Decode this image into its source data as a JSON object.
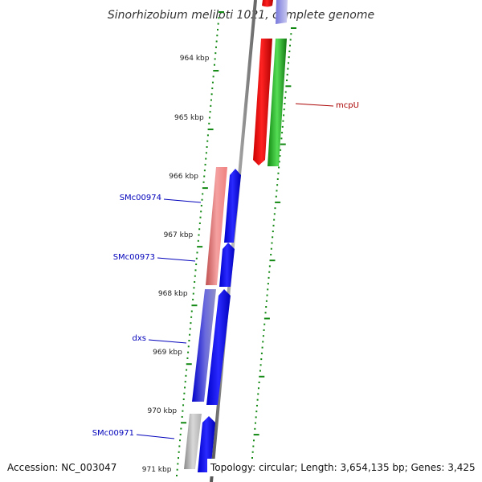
{
  "header": {
    "title": "Sinorhizobium meliloti 1021, complete genome"
  },
  "footer": {
    "accession": "Accession: NC_003047",
    "summary": "Topology: circular; Length: 3,654,135 bp; Genes: 3,425"
  },
  "ticks": [
    "964 kbp",
    "965 kbp",
    "966 kbp",
    "967 kbp",
    "968 kbp",
    "969 kbp",
    "970 kbp",
    "971 kbp"
  ],
  "genes": {
    "mcpU": "mcpU",
    "SMc00974": "SMc00974",
    "SMc00973": "SMc00973",
    "dxs": "dxs",
    "SMc00971": "SMc00971"
  },
  "colors": {
    "forward_cds": "#0000ff",
    "forward_cds_light": "#f08080",
    "reverse_red": "#ff0000",
    "reverse_green": "#22aa22",
    "gray_gene": "#a0a0a0",
    "backbone": "#808080",
    "tick_mark": "#118811",
    "label_blue": "#0000bb",
    "label_red": "#aa0000"
  }
}
